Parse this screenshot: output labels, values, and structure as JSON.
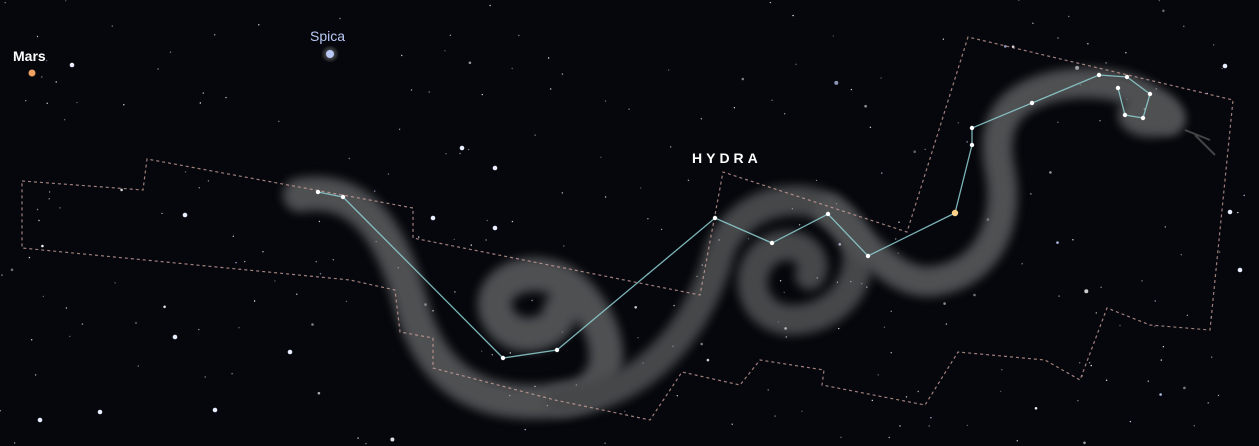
{
  "labels": {
    "mars": "Mars",
    "spica": "Spica",
    "constellation": "HYDRA"
  },
  "colors": {
    "background": "#05070c",
    "constellation_lines": "#8fd1d4",
    "boundary": "#d6a7a0",
    "mars": "#f0a060",
    "spica": "#b9c9f5",
    "figure": "#9a9a9a"
  },
  "icons": {
    "figure": "sea-serpent-artwork"
  }
}
